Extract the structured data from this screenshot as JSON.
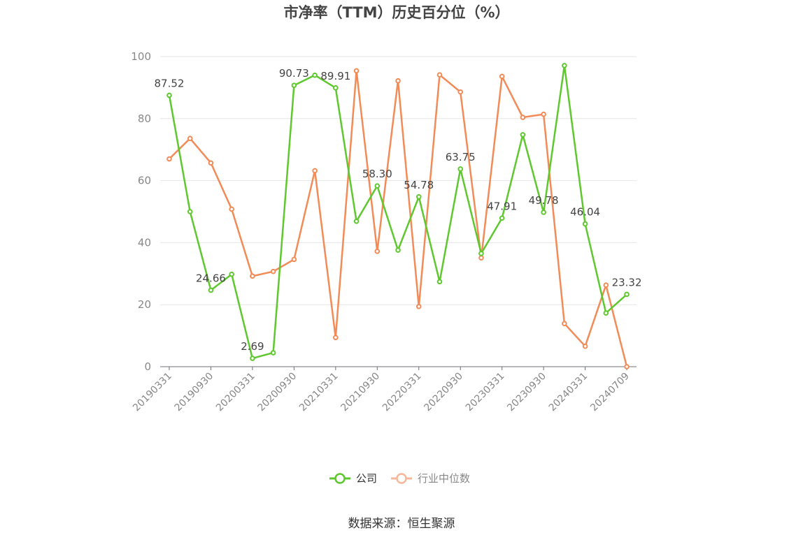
{
  "chart_data": {
    "type": "line",
    "title": "市净率（TTM）历史百分位（%）",
    "source": "数据来源：恒生聚源",
    "ylim": [
      0,
      100
    ],
    "y_ticks": [
      "0",
      "20",
      "40",
      "60",
      "80",
      "100"
    ],
    "x_tick_labels": [
      "20190331",
      "20190930",
      "20200331",
      "20200930",
      "20210331",
      "20210930",
      "20220331",
      "20220930",
      "20230331",
      "20230930",
      "20240331",
      "20240709"
    ],
    "x": [
      "20190331",
      "20190630",
      "20190930",
      "20191231",
      "20200331",
      "20200630",
      "20200930",
      "20201231",
      "20210331",
      "20210630",
      "20210930",
      "20211231",
      "20220331",
      "20220630",
      "20220930",
      "20221231",
      "20230331",
      "20230630",
      "20230930",
      "20231231",
      "20240331",
      "20240630",
      "20240709"
    ],
    "legend_position": "bottom",
    "grid": true,
    "series": [
      {
        "name": "公司",
        "color": "#5ec82e",
        "values": [
          87.52,
          50.0,
          24.66,
          29.8,
          2.69,
          4.5,
          90.73,
          94.0,
          89.91,
          46.9,
          58.3,
          37.6,
          54.78,
          27.4,
          63.75,
          36.5,
          47.91,
          74.8,
          49.78,
          97.1,
          46.04,
          17.3,
          23.32
        ],
        "labels": [
          "87.52",
          "",
          "24.66",
          "",
          "2.69",
          "",
          "90.73",
          "",
          "89.91",
          "",
          "58.30",
          "",
          "54.78",
          "",
          "63.75",
          "",
          "47.91",
          "",
          "49.78",
          "",
          "46.04",
          "",
          "23.32"
        ]
      },
      {
        "name": "行业中位数",
        "color": "#f28b57",
        "values": [
          67.0,
          73.6,
          65.7,
          50.8,
          29.2,
          30.7,
          34.6,
          63.2,
          9.4,
          95.4,
          37.2,
          92.2,
          19.4,
          94.1,
          88.6,
          35.1,
          93.6,
          80.4,
          81.4,
          13.9,
          6.6,
          26.3,
          0.0
        ]
      }
    ]
  }
}
